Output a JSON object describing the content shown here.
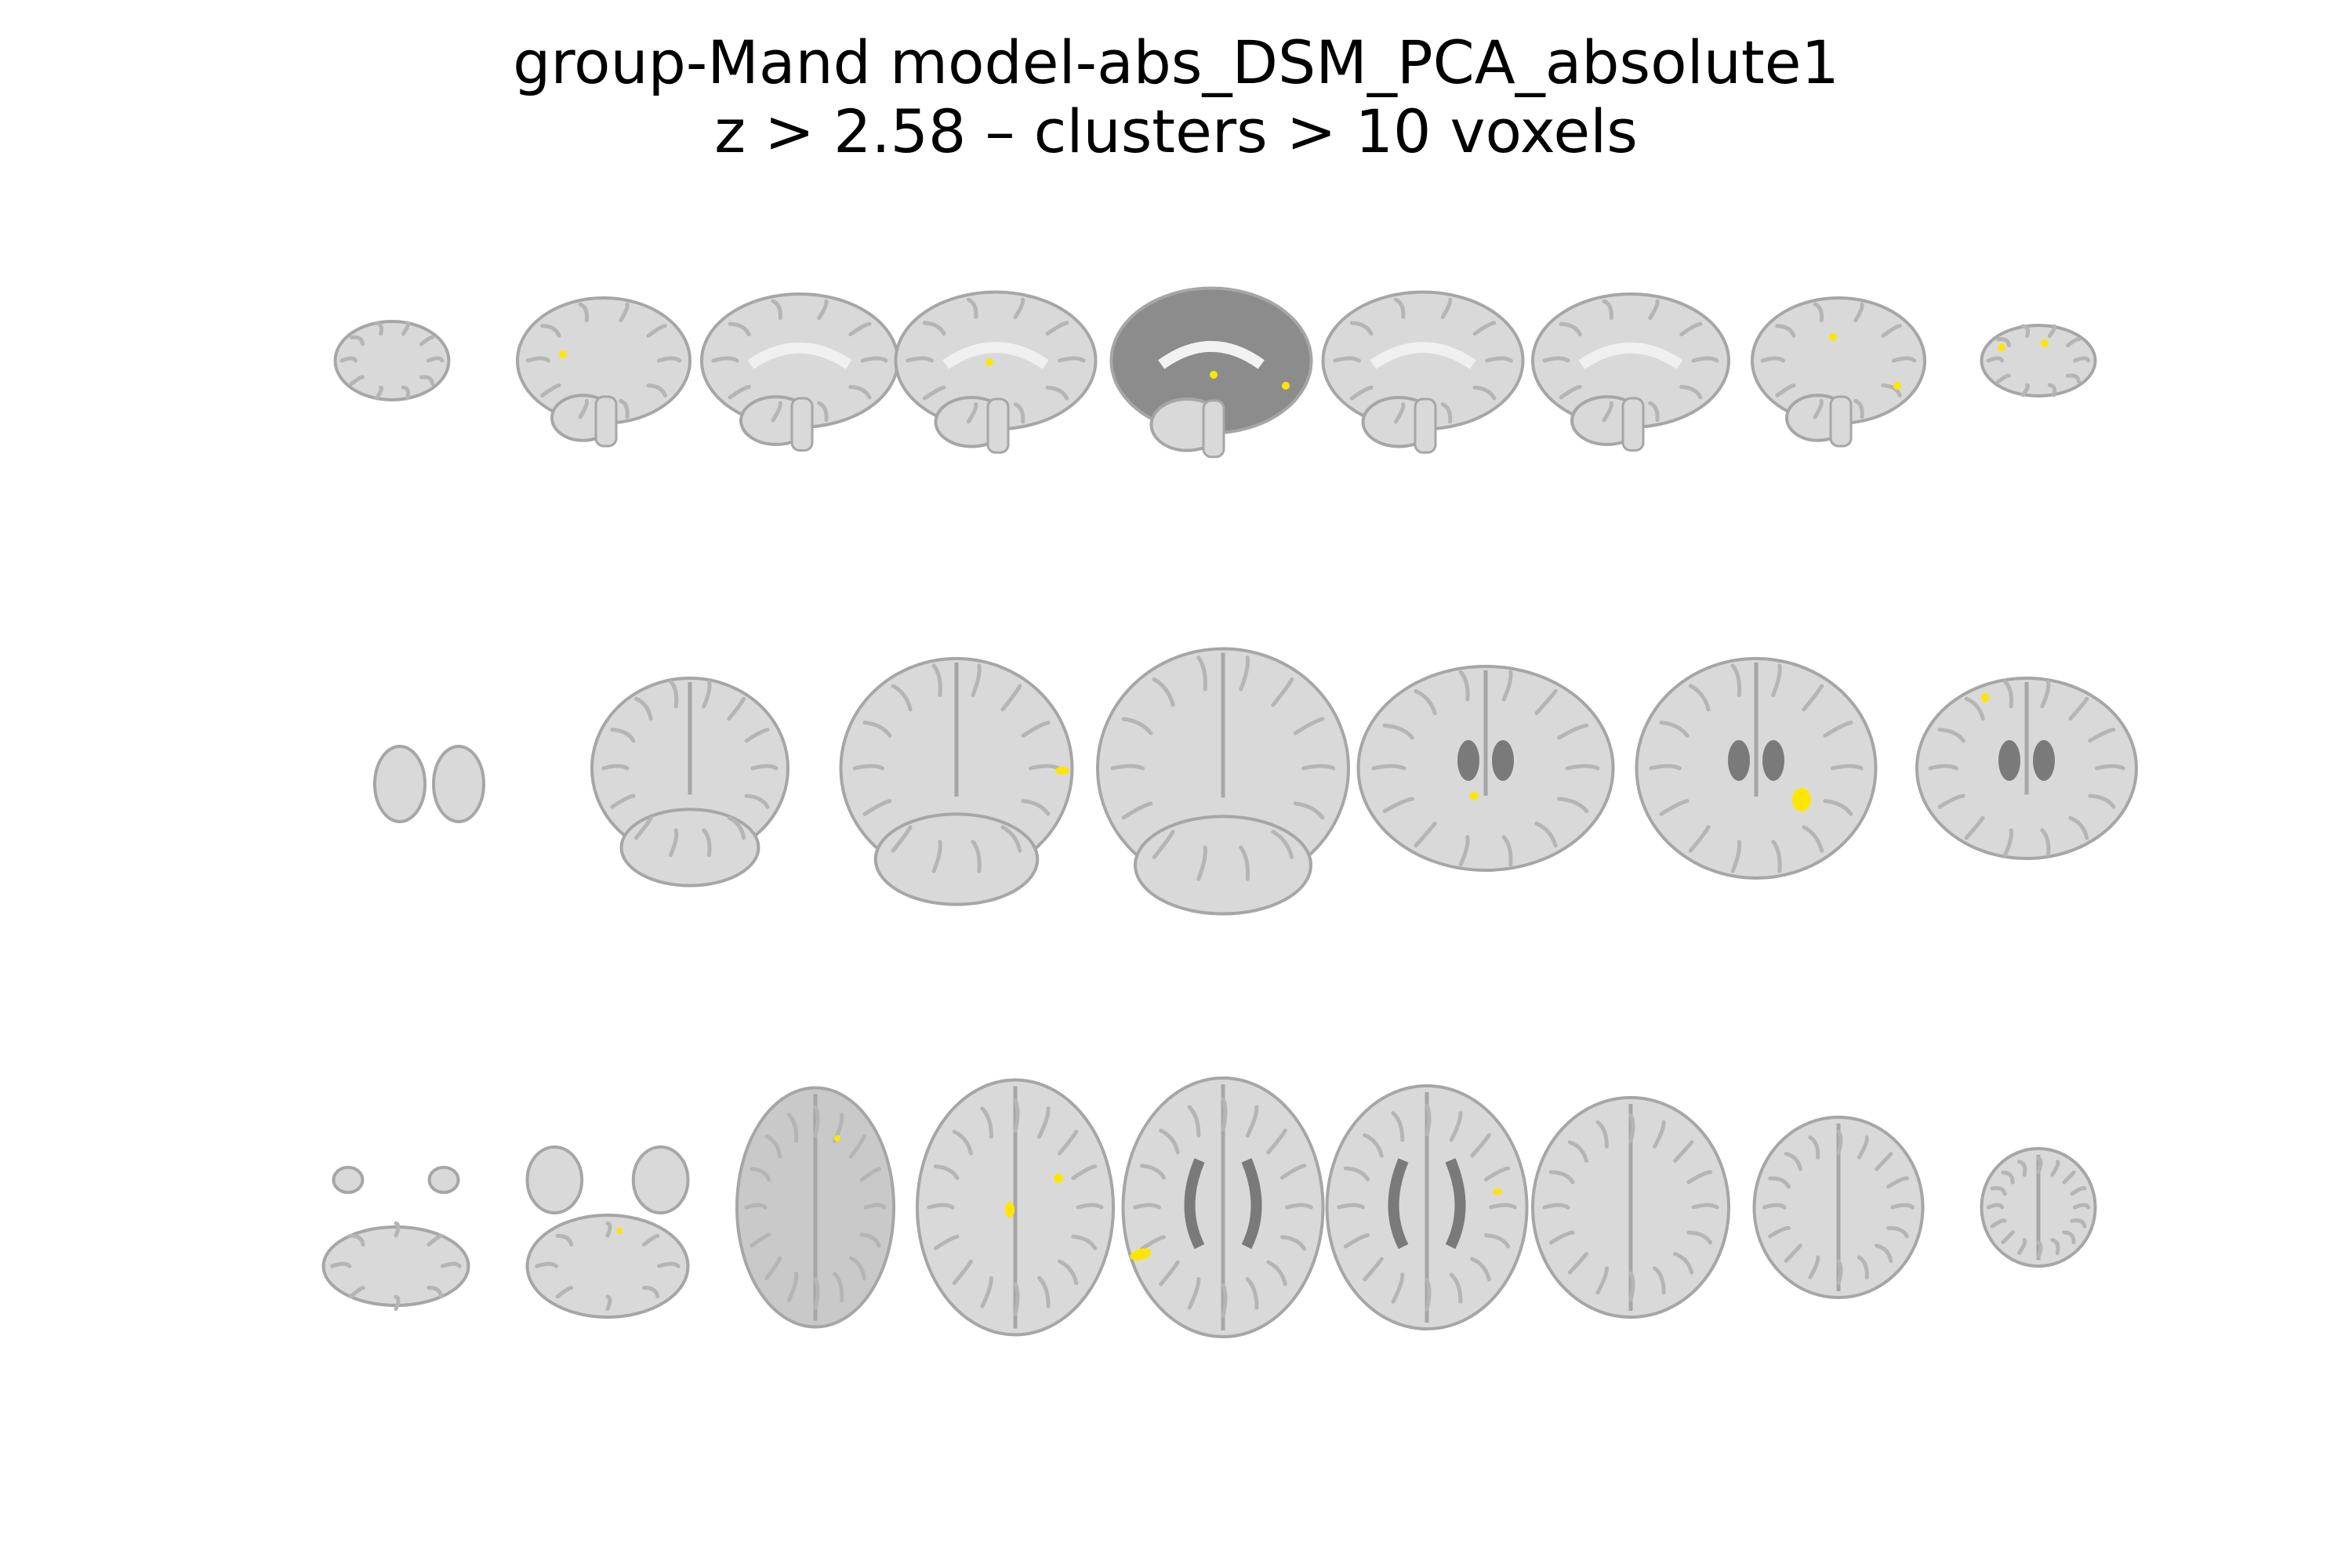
{
  "title": {
    "line1": "group-Mand model-abs_DSM_PCA_absolute1",
    "line2": "z > 2.58 – clusters > 10 voxels"
  },
  "colors": {
    "background": "#ffffff",
    "text": "#000000",
    "brain_fill": "#d9d9d9",
    "brain_outline": "#a6a6a6",
    "brain_dark": "#8c8c8c",
    "sulcus": "#b5b5b5",
    "activation": "#ffe600"
  },
  "views": [
    {
      "name": "sagittal",
      "slice_count": 9
    },
    {
      "name": "coronal",
      "slice_count": 7
    },
    {
      "name": "axial",
      "slice_count": 9
    }
  ]
}
